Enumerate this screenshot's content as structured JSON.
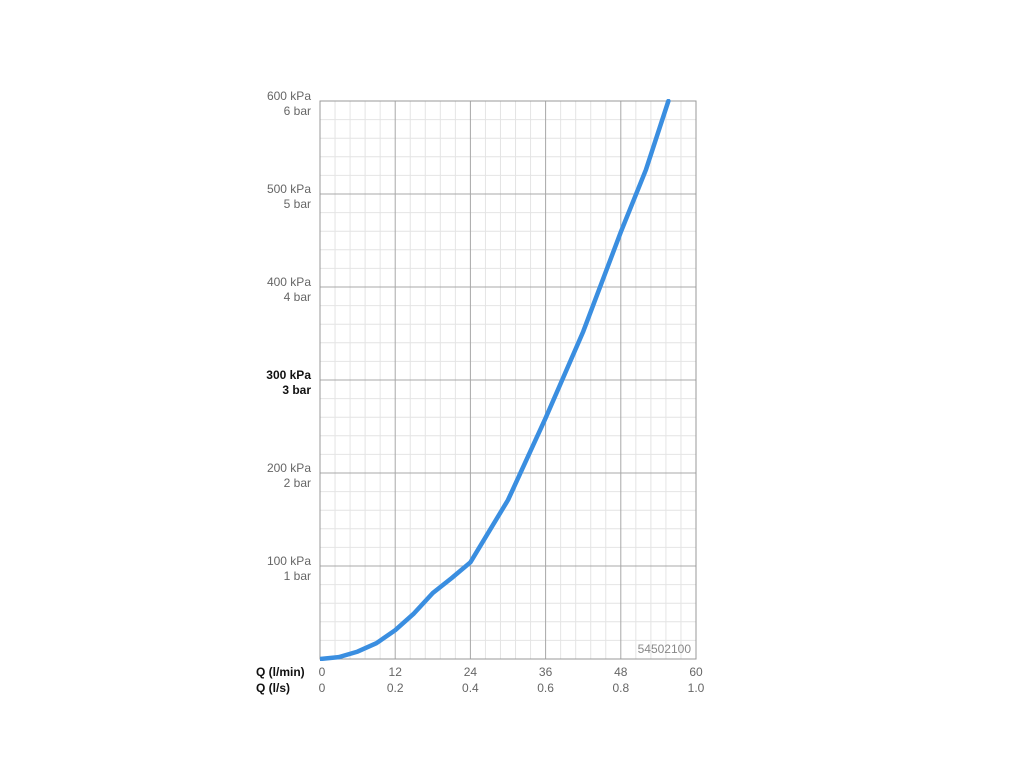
{
  "chart_data": {
    "type": "line",
    "annotation": "54502100",
    "xlabel": "Q (l/min)",
    "x2label": "Q (l/s)",
    "xlim": [
      0,
      60
    ],
    "xticks": [
      0,
      12,
      24,
      36,
      48,
      60
    ],
    "x2lim": [
      0,
      1
    ],
    "x2ticks": [
      0,
      0.2,
      0.4,
      0.6,
      0.8,
      {
        "value": 1,
        "label": "1.0"
      }
    ],
    "ylim": [
      0,
      600
    ],
    "yticks": [
      {
        "value": 100,
        "label": "100 kPa"
      },
      {
        "value": 200,
        "label": "200 kPa"
      },
      {
        "value": 300,
        "label": "300 kPa"
      },
      {
        "value": 400,
        "label": "400 kPa"
      },
      {
        "value": 500,
        "label": "500 kPa"
      },
      {
        "value": 600,
        "label": "600 kPa"
      }
    ],
    "y2ticks": [
      {
        "value": 1,
        "label": "1 bar"
      },
      {
        "value": 2,
        "label": "2 bar"
      },
      {
        "value": 3,
        "label": "3 bar"
      },
      {
        "value": 4,
        "label": "4 bar"
      },
      {
        "value": 5,
        "label": "5 bar"
      },
      {
        "value": 6,
        "label": "6 bar"
      }
    ],
    "y2lim": [
      0,
      6
    ],
    "bold_ytick": 300,
    "grid": true,
    "minor_divisions": 5,
    "series": [
      {
        "color": "#3a8ee0",
        "x": [
          0,
          3,
          6,
          9,
          12,
          15,
          18,
          21,
          24,
          30,
          36,
          42,
          48,
          52,
          55.6
        ],
        "values": [
          0,
          2,
          8,
          17,
          31,
          49,
          71,
          87,
          104,
          171,
          259,
          352,
          459,
          526,
          600
        ]
      }
    ]
  }
}
